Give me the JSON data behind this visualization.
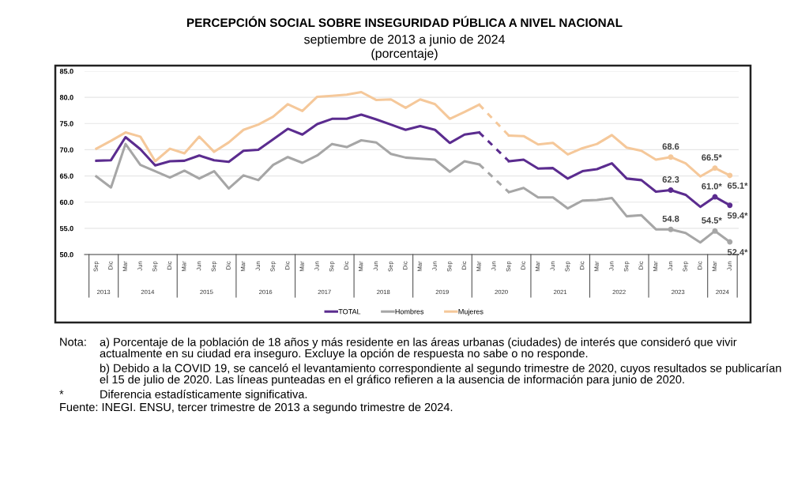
{
  "chart_data": {
    "type": "line",
    "title": "PERCEPCIÓN SOCIAL SOBRE INSEGURIDAD PÚBLICA A NIVEL NACIONAL",
    "subtitle": "septiembre de 2013 a junio de 2024\n(porcentaje)",
    "x": [
      "2013-09",
      "2013-12",
      "2014-03",
      "2014-06",
      "2014-09",
      "2014-12",
      "2015-03",
      "2015-06",
      "2015-09",
      "2015-12",
      "2016-03",
      "2016-06",
      "2016-09",
      "2016-12",
      "2017-03",
      "2017-06",
      "2017-09",
      "2017-12",
      "2018-03",
      "2018-06",
      "2018-09",
      "2018-12",
      "2019-03",
      "2019-06",
      "2019-09",
      "2019-12",
      "2020-03",
      "2020-06",
      "2020-09",
      "2020-12",
      "2021-03",
      "2021-06",
      "2021-09",
      "2021-12",
      "2022-03",
      "2022-06",
      "2022-09",
      "2022-12",
      "2023-03",
      "2023-06",
      "2023-09",
      "2023-12",
      "2024-03",
      "2024-06"
    ],
    "xlim": [
      "2013-06-20",
      "2024-07-26"
    ],
    "xticks": [
      {
        "value": "2013-09",
        "label": "Sep"
      },
      {
        "value": "2013-12",
        "label": "Dic"
      },
      {
        "value": "2014-03",
        "label": "Mar"
      },
      {
        "value": "2014-06",
        "label": "Jun"
      },
      {
        "value": "2014-09",
        "label": "Sep"
      },
      {
        "value": "2014-12",
        "label": "Dic"
      },
      {
        "value": "2015-03",
        "label": "Mar"
      },
      {
        "value": "2015-06",
        "label": "Jun"
      },
      {
        "value": "2015-09",
        "label": "Sep"
      },
      {
        "value": "2015-12",
        "label": "Dic"
      },
      {
        "value": "2016-03",
        "label": "Mar"
      },
      {
        "value": "2016-06",
        "label": "Jun"
      },
      {
        "value": "2016-09",
        "label": "Sep"
      },
      {
        "value": "2016-12",
        "label": "Dic"
      },
      {
        "value": "2017-03",
        "label": "Mar"
      },
      {
        "value": "2017-06",
        "label": "Jun"
      },
      {
        "value": "2017-09",
        "label": "Sep"
      },
      {
        "value": "2017-12",
        "label": "Dic"
      },
      {
        "value": "2018-03",
        "label": "Mar"
      },
      {
        "value": "2018-06",
        "label": "Jun"
      },
      {
        "value": "2018-09",
        "label": "Sep"
      },
      {
        "value": "2018-12",
        "label": "Dic"
      },
      {
        "value": "2019-03",
        "label": "Mar"
      },
      {
        "value": "2019-06",
        "label": "Jun"
      },
      {
        "value": "2019-09",
        "label": "Sep"
      },
      {
        "value": "2019-12",
        "label": "Dic"
      },
      {
        "value": "2020-03",
        "label": "Mar"
      },
      {
        "value": "2020-06",
        "label": "Jun"
      },
      {
        "value": "2020-09",
        "label": "Sep"
      },
      {
        "value": "2020-12",
        "label": "Dic"
      },
      {
        "value": "2021-03",
        "label": "Mar"
      },
      {
        "value": "2021-06",
        "label": "Jun"
      },
      {
        "value": "2021-09",
        "label": "Sep"
      },
      {
        "value": "2021-12",
        "label": "Dic"
      },
      {
        "value": "2022-03",
        "label": "Mar"
      },
      {
        "value": "2022-06",
        "label": "Jun"
      },
      {
        "value": "2022-09",
        "label": "Sep"
      },
      {
        "value": "2022-12",
        "label": "Dic"
      },
      {
        "value": "2023-03",
        "label": "Mar"
      },
      {
        "value": "2023-06",
        "label": "Jun"
      },
      {
        "value": "2023-09",
        "label": "Sep"
      },
      {
        "value": "2023-12",
        "label": "Dic"
      },
      {
        "value": "2024-03",
        "label": "Mar"
      },
      {
        "value": "2024-06",
        "label": "Jun"
      }
    ],
    "x2lim": [
      "2013-06-20",
      "2024-07-26"
    ],
    "x2ticks": [
      {
        "value": "2013-10-16",
        "label": "2013"
      },
      {
        "value": "2014-07-16",
        "label": "2014"
      },
      {
        "value": "2015-07-16",
        "label": "2015"
      },
      {
        "value": "2016-07-16",
        "label": "2016"
      },
      {
        "value": "2017-07-16",
        "label": "2017"
      },
      {
        "value": "2018-07-16",
        "label": "2018"
      },
      {
        "value": "2019-07-16",
        "label": "2019"
      },
      {
        "value": "2020-07-16",
        "label": "2020"
      },
      {
        "value": "2021-07-16",
        "label": "2021"
      },
      {
        "value": "2022-07-16",
        "label": "2022"
      },
      {
        "value": "2023-07-16",
        "label": "2023"
      },
      {
        "value": "2024-04-16",
        "label": "2024"
      }
    ],
    "series": [
      {
        "name": "TOTAL",
        "color": "#5b2c8f",
        "values": [
          67.9,
          68.0,
          72.4,
          70.1,
          67.0,
          67.8,
          67.9,
          68.9,
          68.0,
          67.7,
          69.8,
          70.0,
          72.0,
          74.0,
          72.9,
          74.9,
          75.9,
          75.9,
          76.7,
          75.8,
          74.8,
          73.8,
          74.5,
          73.8,
          71.3,
          72.9,
          73.3,
          null,
          67.8,
          68.1,
          66.4,
          66.5,
          64.5,
          65.9,
          66.3,
          67.4,
          64.5,
          64.2,
          62.0,
          62.3,
          61.4,
          59.1,
          61.0,
          59.4
        ],
        "value_labels": [
          null,
          null,
          null,
          null,
          null,
          null,
          null,
          null,
          null,
          null,
          null,
          null,
          null,
          null,
          null,
          null,
          null,
          null,
          null,
          null,
          null,
          null,
          null,
          null,
          null,
          null,
          null,
          null,
          null,
          null,
          null,
          null,
          null,
          null,
          null,
          null,
          null,
          null,
          null,
          "62.3",
          null,
          null,
          "61.0*",
          "59.4*"
        ]
      },
      {
        "name": "Hombres",
        "color": "#a6a6a6",
        "values": [
          64.9,
          62.8,
          71.1,
          67.1,
          65.9,
          64.7,
          66.0,
          64.5,
          65.9,
          62.6,
          65.1,
          64.2,
          67.1,
          68.6,
          67.5,
          68.9,
          71.1,
          70.5,
          71.8,
          71.4,
          69.2,
          68.5,
          68.3,
          68.1,
          65.8,
          67.8,
          67.2,
          null,
          61.9,
          62.7,
          60.9,
          60.9,
          58.8,
          60.3,
          60.4,
          60.8,
          57.3,
          57.5,
          54.8,
          54.8,
          54.1,
          52.3,
          54.5,
          52.4
        ],
        "value_labels": [
          null,
          null,
          null,
          null,
          null,
          null,
          null,
          null,
          null,
          null,
          null,
          null,
          null,
          null,
          null,
          null,
          null,
          null,
          null,
          null,
          null,
          null,
          null,
          null,
          null,
          null,
          null,
          null,
          null,
          null,
          null,
          null,
          null,
          null,
          null,
          null,
          null,
          null,
          null,
          "54.8",
          null,
          null,
          "54.5*",
          "52.4*"
        ]
      },
      {
        "name": "Mujeres",
        "color": "#f5c89a",
        "values": [
          70.2,
          71.7,
          73.3,
          72.5,
          67.8,
          70.2,
          69.3,
          72.5,
          69.6,
          71.4,
          73.8,
          74.8,
          76.3,
          78.7,
          77.4,
          80.1,
          80.3,
          80.5,
          81.0,
          79.5,
          79.6,
          78.0,
          79.6,
          78.7,
          75.9,
          77.2,
          78.6,
          null,
          72.7,
          72.6,
          71.0,
          71.3,
          69.1,
          70.3,
          71.1,
          72.8,
          70.4,
          69.8,
          68.1,
          68.6,
          67.4,
          64.9,
          66.5,
          65.1
        ],
        "value_labels": [
          null,
          null,
          null,
          null,
          null,
          null,
          null,
          null,
          null,
          null,
          null,
          null,
          null,
          null,
          null,
          null,
          null,
          null,
          null,
          null,
          null,
          null,
          null,
          null,
          null,
          null,
          null,
          null,
          null,
          null,
          null,
          null,
          null,
          null,
          null,
          null,
          null,
          null,
          null,
          "68.6",
          null,
          null,
          "66.5*",
          "65.1*"
        ]
      }
    ],
    "ylim": [
      50,
      85
    ],
    "yticks": [
      {
        "value": 50,
        "label": "50.0"
      },
      {
        "value": 55,
        "label": "55.0"
      },
      {
        "value": 60,
        "label": "60.0"
      },
      {
        "value": 65,
        "label": "65.0"
      },
      {
        "value": 70,
        "label": "70.0"
      },
      {
        "value": 75,
        "label": "75.0"
      },
      {
        "value": 80,
        "label": "80.0"
      },
      {
        "value": 85,
        "label": "85.0"
      }
    ],
    "grid": "y",
    "legend": "bottom",
    "line_style": "solid",
    "annotations": [
      "Nota:\ta) Porcentaje de la población de 18 años y más residente en las áreas urbanas (ciudades) de interés que consideró que vivir\nactualmente en su ciudad era inseguro. Excluye la opción de respuesta no sabe o no responde.",
      "\tb) Debido a la COVID 19, se canceló el levantamiento correspondiente al segundo trimestre de 2020, cuyos resultados se publicarían\nel 15 de julio de 2020. Las líneas punteadas en el gráfico refieren a la ausencia de información para junio de 2020.",
      "*\tDiferencia estadísticamente significativa.",
      "Fuente: INEGI. ENSU, tercer trimestre de 2013 a segundo trimestre de 2024."
    ]
  }
}
